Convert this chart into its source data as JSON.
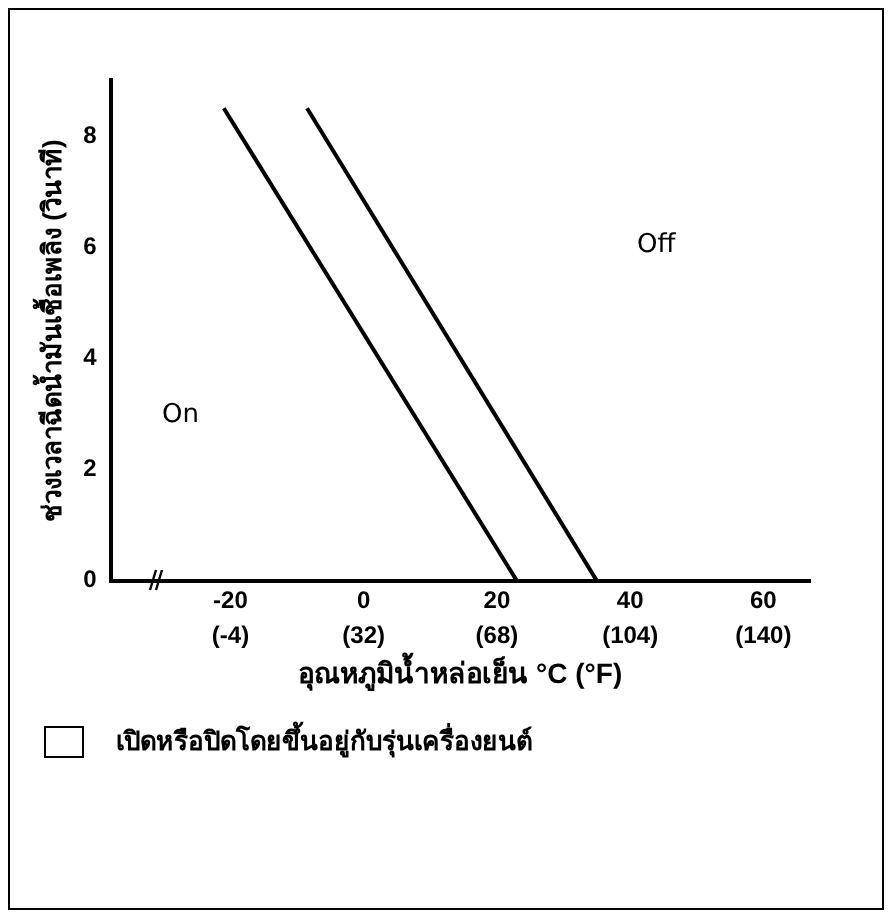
{
  "chart_data": {
    "type": "line",
    "xlabel": "อุณหภูมิน้ำหล่อเย็น °C (°F)",
    "ylabel": "ช่วงเวลาฉีดน้ำมันเชื้อเพลิง (วินาที)",
    "series": [
      {
        "color": "#000000",
        "x": [
          -21,
          23
        ],
        "values": [
          8.5,
          0
        ]
      },
      {
        "color": "#000000",
        "x": [
          -8.5,
          35
        ],
        "values": [
          8.5,
          0
        ]
      }
    ],
    "xlim": [
      -38,
      67
    ],
    "xticks": [
      -20,
      0,
      20,
      40,
      60
    ],
    "x2lim": [
      -36.4,
      152.6
    ],
    "x2ticks": [
      {
        "value": -4,
        "label": "(-4)"
      },
      {
        "value": 32,
        "label": "(32)"
      },
      {
        "value": 68,
        "label": "(68)"
      },
      {
        "value": 104,
        "label": "(104)"
      },
      {
        "value": 140,
        "label": "(140)"
      }
    ],
    "ylim": [
      0,
      9
    ],
    "yticks": [
      0,
      2,
      4,
      6,
      8
    ],
    "grid": false,
    "legend": false,
    "marker": "none",
    "line_style": "solid",
    "annotations": [
      "On",
      "Off",
      "เปิดหรือปิดโดยขึ้นอยู่กับรุ่นเครื่องยนต์"
    ]
  }
}
